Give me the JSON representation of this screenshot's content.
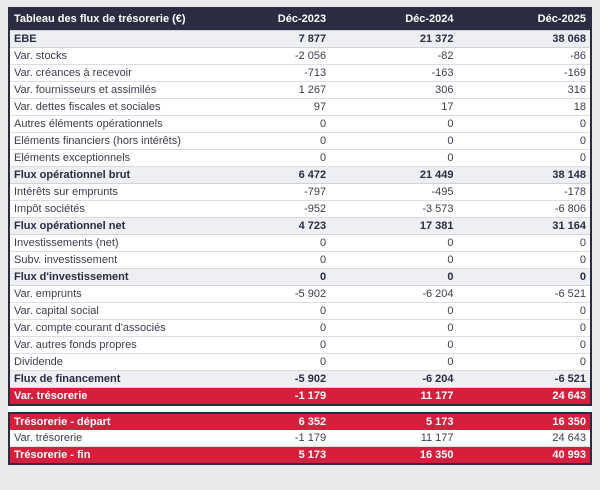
{
  "chart_data": {
    "type": "table",
    "title": "Tableau des flux de trésorerie (€)",
    "columns": [
      "Déc-2023",
      "Déc-2024",
      "Déc-2025"
    ],
    "rows": [
      {
        "label": "EBE",
        "values": [
          "7 877",
          "21 372",
          "38 068"
        ],
        "style": "subtotal"
      },
      {
        "label": "Var. stocks",
        "values": [
          "-2 056",
          "-82",
          "-86"
        ],
        "style": "normal"
      },
      {
        "label": "Var. créances à recevoir",
        "values": [
          "-713",
          "-163",
          "-169"
        ],
        "style": "normal"
      },
      {
        "label": "Var. fournisseurs et assimilés",
        "values": [
          "1 267",
          "306",
          "316"
        ],
        "style": "normal"
      },
      {
        "label": "Var. dettes fiscales et sociales",
        "values": [
          "97",
          "17",
          "18"
        ],
        "style": "normal"
      },
      {
        "label": "Autres éléments opérationnels",
        "values": [
          "0",
          "0",
          "0"
        ],
        "style": "normal"
      },
      {
        "label": "Eléments financiers (hors intérêts)",
        "values": [
          "0",
          "0",
          "0"
        ],
        "style": "normal"
      },
      {
        "label": "Eléments exceptionnels",
        "values": [
          "0",
          "0",
          "0"
        ],
        "style": "normal"
      },
      {
        "label": "Flux opérationnel brut",
        "values": [
          "6 472",
          "21 449",
          "38 148"
        ],
        "style": "subtotal"
      },
      {
        "label": "Intérêts sur emprunts",
        "values": [
          "-797",
          "-495",
          "-178"
        ],
        "style": "normal"
      },
      {
        "label": "Impôt sociétés",
        "values": [
          "-952",
          "-3 573",
          "-6 806"
        ],
        "style": "normal"
      },
      {
        "label": "Flux opérationnel net",
        "values": [
          "4 723",
          "17 381",
          "31 164"
        ],
        "style": "subtotal"
      },
      {
        "label": "Investissements (net)",
        "values": [
          "0",
          "0",
          "0"
        ],
        "style": "normal"
      },
      {
        "label": "Subv. investissement",
        "values": [
          "0",
          "0",
          "0"
        ],
        "style": "normal"
      },
      {
        "label": "Flux d'investissement",
        "values": [
          "0",
          "0",
          "0"
        ],
        "style": "subtotal"
      },
      {
        "label": "Var. emprunts",
        "values": [
          "-5 902",
          "-6 204",
          "-6 521"
        ],
        "style": "normal"
      },
      {
        "label": "Var. capital social",
        "values": [
          "0",
          "0",
          "0"
        ],
        "style": "normal"
      },
      {
        "label": "Var. compte courant d'associés",
        "values": [
          "0",
          "0",
          "0"
        ],
        "style": "normal"
      },
      {
        "label": "Var. autres fonds propres",
        "values": [
          "0",
          "0",
          "0"
        ],
        "style": "normal"
      },
      {
        "label": "Dividende",
        "values": [
          "0",
          "0",
          "0"
        ],
        "style": "normal"
      },
      {
        "label": "Flux de financement",
        "values": [
          "-5 902",
          "-6 204",
          "-6 521"
        ],
        "style": "subtotal"
      },
      {
        "label": "Var. trésorerie",
        "values": [
          "-1 179",
          "11 177",
          "24 643"
        ],
        "style": "highlight"
      }
    ],
    "summary_rows": [
      {
        "label": "Trésorerie - départ",
        "values": [
          "6 352",
          "5 173",
          "16 350"
        ],
        "style": "highlight"
      },
      {
        "label": "Var. trésorerie",
        "values": [
          "-1 179",
          "11 177",
          "24 643"
        ],
        "style": "normal"
      },
      {
        "label": "Trésorerie - fin",
        "values": [
          "5 173",
          "16 350",
          "40 993"
        ],
        "style": "highlight"
      }
    ],
    "colors": {
      "header_bg": "#2b2b42",
      "highlight_bg": "#d51f3d",
      "subtotal_bg": "#edeff3",
      "page_bg": "#e9e9ec",
      "outer_border": "#2b2b42",
      "row_border": "#dcdce1"
    }
  }
}
